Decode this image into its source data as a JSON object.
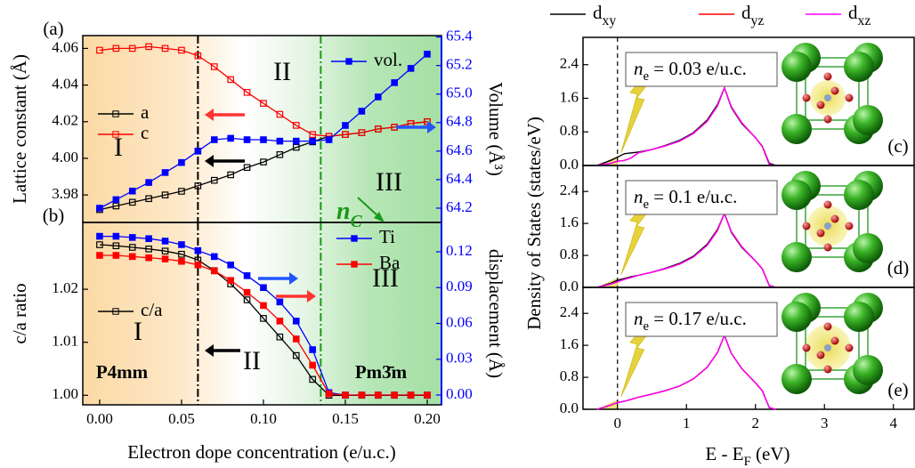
{
  "chart_data": [
    {
      "type": "line",
      "panel": "(a)",
      "x": [
        0,
        0.01,
        0.02,
        0.03,
        0.04,
        0.05,
        0.06,
        0.07,
        0.08,
        0.09,
        0.1,
        0.11,
        0.12,
        0.13,
        0.14,
        0.15,
        0.16,
        0.17,
        0.18,
        0.19,
        0.2
      ],
      "xlim": [
        -0.0103,
        0.2087
      ],
      "ylim": [
        3.965,
        4.067
      ],
      "y2lim": [
        64.1,
        65.41
      ],
      "yticks": [
        3.98,
        {
          "value": 4.0,
          "label": "4.00"
        },
        4.02,
        4.04,
        4.06
      ],
      "y2ticks": [
        64.2,
        64.4,
        64.6,
        64.8,
        {
          "value": 65.0,
          "label": "65.0"
        },
        65.2,
        65.4
      ],
      "ylabel": "Lattice constant (Å)",
      "y2label": "Volume (Å³)",
      "series": [
        {
          "name": "a",
          "color": "#000000",
          "marker": "open",
          "values": [
            3.972,
            3.974,
            3.976,
            3.978,
            3.98,
            3.982,
            3.985,
            3.988,
            3.991,
            3.995,
            3.998,
            4.002,
            4.006,
            4.009,
            4.012,
            4.013,
            4.014,
            4.016,
            4.017,
            4.019,
            4.02
          ]
        },
        {
          "name": "c",
          "color": "#ff0000",
          "marker": "open",
          "values": [
            4.059,
            4.06,
            4.06,
            4.061,
            4.06,
            4.059,
            4.056,
            4.05,
            4.043,
            4.036,
            4.03,
            4.024,
            4.018,
            4.013,
            4.012,
            4.013,
            4.014,
            4.016,
            4.017,
            4.019,
            4.02
          ]
        },
        {
          "name": "vol.",
          "color": "#0000ff",
          "marker": "filled",
          "axis": "y2",
          "values": [
            64.2,
            64.26,
            64.32,
            64.38,
            64.45,
            64.52,
            64.6,
            64.68,
            64.69,
            64.68,
            64.68,
            64.67,
            64.67,
            64.67,
            64.68,
            64.78,
            64.88,
            64.98,
            65.08,
            65.18,
            65.28
          ]
        }
      ],
      "phase_boundaries": [
        0.06,
        0.135
      ],
      "region_labels": [
        "I",
        "II",
        "III"
      ],
      "annotation": {
        "main": "n",
        "sub": "C"
      }
    },
    {
      "type": "line",
      "panel": "(b)",
      "x": [
        0,
        0.01,
        0.02,
        0.03,
        0.04,
        0.05,
        0.06,
        0.07,
        0.08,
        0.09,
        0.1,
        0.11,
        0.12,
        0.13,
        0.14,
        0.15,
        0.16,
        0.17,
        0.18,
        0.19,
        0.2
      ],
      "xlim": [
        -0.0103,
        0.2087
      ],
      "ylim": [
        0.9982,
        1.0326
      ],
      "y2lim": [
        -0.0082,
        0.1446
      ],
      "xticks": [
        {
          "value": 0,
          "label": "0.00"
        },
        0.05,
        {
          "value": 0.1,
          "label": "0.10"
        },
        0.15,
        {
          "value": 0.2,
          "label": "0.20"
        }
      ],
      "yticks": [
        {
          "value": 1.0,
          "label": "1.00"
        },
        1.01,
        1.02
      ],
      "y2ticks": [
        {
          "value": 0,
          "label": "0.00"
        },
        0.03,
        0.06,
        0.09,
        0.12
      ],
      "xlabel": "Electron dope concentration (e/u.c.)",
      "ylabel": "c/a ratio",
      "y2label": "displacement (Å)",
      "series": [
        {
          "name": "c/a",
          "color": "#000000",
          "marker": "open",
          "values": [
            1.0284,
            1.0282,
            1.0279,
            1.0276,
            1.0272,
            1.0266,
            1.0255,
            1.0235,
            1.021,
            1.018,
            1.0145,
            1.011,
            1.0075,
            1.003,
            1.0,
            1.0,
            1.0,
            1.0,
            1.0,
            1.0,
            1.0
          ]
        },
        {
          "name": "Ti",
          "color": "#0000ff",
          "marker": "filled",
          "axis": "y2",
          "values": [
            0.133,
            0.133,
            0.132,
            0.131,
            0.129,
            0.126,
            0.121,
            0.116,
            0.109,
            0.1,
            0.09,
            0.078,
            0.062,
            0.038,
            0.002,
            0,
            0,
            0,
            0,
            0,
            0
          ]
        },
        {
          "name": "Ba",
          "color": "#ff0000",
          "marker": "filled",
          "axis": "y2",
          "values": [
            0.117,
            0.117,
            0.116,
            0.115,
            0.114,
            0.112,
            0.109,
            0.104,
            0.096,
            0.086,
            0.075,
            0.062,
            0.047,
            0.025,
            0.001,
            0,
            0,
            0,
            0,
            0,
            0
          ]
        }
      ],
      "phase_boundaries": [
        0.06,
        0.135
      ],
      "region_labels": [
        "I",
        "II",
        "III"
      ],
      "phase_labels": [
        "P4mm",
        "Pm3̄m"
      ]
    },
    {
      "type": "line",
      "panel": "(c)",
      "x": [
        -0.3,
        -0.1,
        0,
        0.1,
        0.2,
        0.3,
        0.5,
        0.7,
        0.9,
        1.1,
        1.3,
        1.45,
        1.55,
        1.65,
        1.8,
        2.0,
        2.1,
        2.2,
        2.3
      ],
      "xlim": [
        -0.5,
        4.3
      ],
      "ylim": [
        0,
        3.05
      ],
      "yticks": [
        {
          "value": 0,
          "label": "0.0"
        },
        0.8,
        1.6,
        2.4
      ],
      "series": [
        {
          "name": "d",
          "name_sub": "xy",
          "color": "#000000",
          "values": [
            0,
            0.12,
            0.2,
            0.28,
            0.3,
            0.32,
            0.38,
            0.48,
            0.6,
            0.78,
            1.08,
            1.45,
            1.85,
            1.38,
            1.0,
            0.66,
            0.46,
            0.05,
            0
          ]
        },
        {
          "name": "d",
          "name_sub": "yz",
          "color": "#ff0000",
          "values": [
            0,
            0.05,
            0.1,
            0.12,
            0.18,
            0.3,
            0.38,
            0.47,
            0.58,
            0.76,
            1.05,
            1.42,
            1.85,
            1.4,
            1.02,
            0.66,
            0.45,
            0.02,
            0
          ]
        },
        {
          "name": "d",
          "name_sub": "xz",
          "color": "#ff00ff",
          "values": [
            0,
            0.05,
            0.1,
            0.12,
            0.18,
            0.3,
            0.38,
            0.47,
            0.58,
            0.76,
            1.05,
            1.42,
            1.85,
            1.4,
            1.02,
            0.66,
            0.45,
            0.02,
            0
          ]
        }
      ],
      "annotation": {
        "main": "n",
        "sub": "e",
        "tail": " = 0.03 e/u.c."
      }
    },
    {
      "type": "line",
      "panel": "(d)",
      "x": [
        -0.3,
        -0.1,
        0,
        0.1,
        0.2,
        0.3,
        0.5,
        0.7,
        0.9,
        1.1,
        1.3,
        1.45,
        1.55,
        1.65,
        1.8,
        2.0,
        2.1,
        2.2,
        2.3
      ],
      "xlim": [
        -0.5,
        4.3
      ],
      "ylim": [
        0,
        3.05
      ],
      "yticks": [
        {
          "value": 0,
          "label": "0.0"
        },
        0.8,
        1.6,
        2.4
      ],
      "ylabel": "Density of States (states/eV)",
      "series": [
        {
          "color": "#000000",
          "values": [
            0,
            0.1,
            0.18,
            0.22,
            0.27,
            0.3,
            0.38,
            0.48,
            0.6,
            0.78,
            1.08,
            1.45,
            1.85,
            1.38,
            1.0,
            0.66,
            0.46,
            0.05,
            0
          ]
        },
        {
          "color": "#ff0000",
          "values": [
            0,
            0.08,
            0.14,
            0.2,
            0.25,
            0.3,
            0.38,
            0.47,
            0.58,
            0.76,
            1.05,
            1.42,
            1.85,
            1.4,
            1.02,
            0.66,
            0.46,
            0.04,
            0
          ]
        },
        {
          "color": "#ff00ff",
          "values": [
            0,
            0.08,
            0.14,
            0.2,
            0.25,
            0.3,
            0.38,
            0.47,
            0.58,
            0.76,
            1.05,
            1.42,
            1.85,
            1.4,
            1.02,
            0.66,
            0.46,
            0.04,
            0
          ]
        }
      ],
      "annotation": {
        "main": "n",
        "sub": "e",
        "tail": " = 0.1 e/u.c."
      }
    },
    {
      "type": "line",
      "panel": "(e)",
      "x": [
        -0.3,
        -0.1,
        0,
        0.1,
        0.2,
        0.3,
        0.5,
        0.7,
        0.9,
        1.1,
        1.3,
        1.45,
        1.55,
        1.65,
        1.8,
        2.0,
        2.1,
        2.2,
        2.3
      ],
      "xlim": [
        -0.5,
        4.3
      ],
      "ylim": [
        0,
        3.05
      ],
      "xticks": [
        0,
        1,
        2,
        3,
        4
      ],
      "yticks": [
        {
          "value": 0,
          "label": "0.0"
        },
        0.8,
        1.6,
        2.4
      ],
      "xlabel": {
        "main": "E - E",
        "sub": "F",
        "tail": " (eV)"
      },
      "series": [
        {
          "color": "#000000",
          "values": [
            0,
            0.1,
            0.17,
            0.2,
            0.25,
            0.3,
            0.38,
            0.47,
            0.58,
            0.76,
            1.05,
            1.42,
            1.85,
            1.4,
            1.02,
            0.66,
            0.46,
            0.04,
            0
          ]
        },
        {
          "color": "#ff0000",
          "values": [
            0,
            0.1,
            0.17,
            0.2,
            0.25,
            0.3,
            0.38,
            0.47,
            0.58,
            0.76,
            1.05,
            1.42,
            1.85,
            1.4,
            1.02,
            0.66,
            0.46,
            0.04,
            0
          ]
        },
        {
          "color": "#ff00ff",
          "values": [
            0,
            0.1,
            0.17,
            0.2,
            0.25,
            0.3,
            0.38,
            0.47,
            0.58,
            0.76,
            1.05,
            1.42,
            1.85,
            1.4,
            1.02,
            0.66,
            0.46,
            0.04,
            0
          ]
        }
      ],
      "annotation": {
        "main": "n",
        "sub": "e",
        "tail": " = 0.17 e/u.c."
      }
    }
  ]
}
